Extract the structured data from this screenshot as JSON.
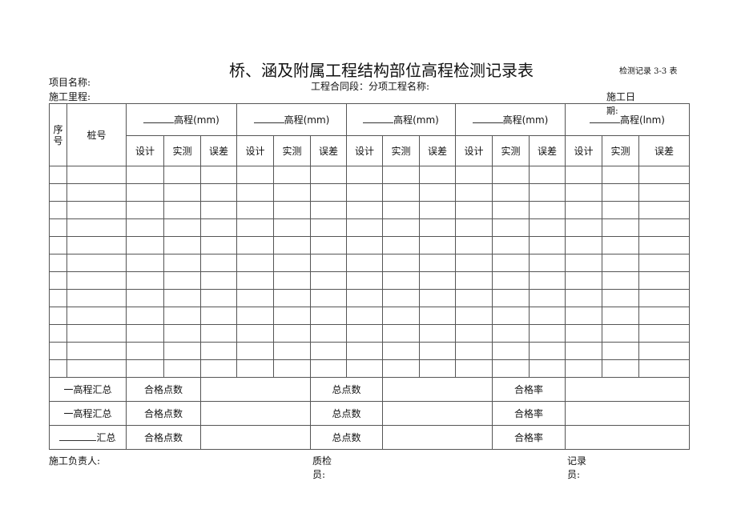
{
  "title": "桥、涵及附属工程结构部位高程检测记录表",
  "form_code": "检测记录 3-3 表",
  "header": {
    "project_name": "项目名称:",
    "contract": "工程合同段：分项工程名称:",
    "mileage": "施工里程:",
    "date_a": "施工日",
    "date_b": "期:"
  },
  "table": {
    "seq_a": "序",
    "seq_b": "号",
    "station": "桩号",
    "groups": [
      "高程(mm)",
      "高程(mm)",
      "高程(mm)",
      "高程(mm)",
      "高程(lnm)"
    ],
    "sub": [
      "设计",
      "实测",
      "误差"
    ],
    "data_rows": 12,
    "summary": [
      {
        "label": "一高程汇总",
        "pass": "合格点数",
        "total": "总点数",
        "rate": "合格率"
      },
      {
        "label": "一高程汇总",
        "pass": "合格点数",
        "total": "总点数",
        "rate": "合格率"
      },
      {
        "label": "汇总",
        "pass": "合格点数",
        "total": "总点数",
        "rate": "合格率"
      }
    ]
  },
  "footer": {
    "construction_lead": "施工负责人:",
    "qc_a": "质检",
    "qc_b": "员:",
    "rec_a": "记录",
    "rec_b": "员:"
  }
}
